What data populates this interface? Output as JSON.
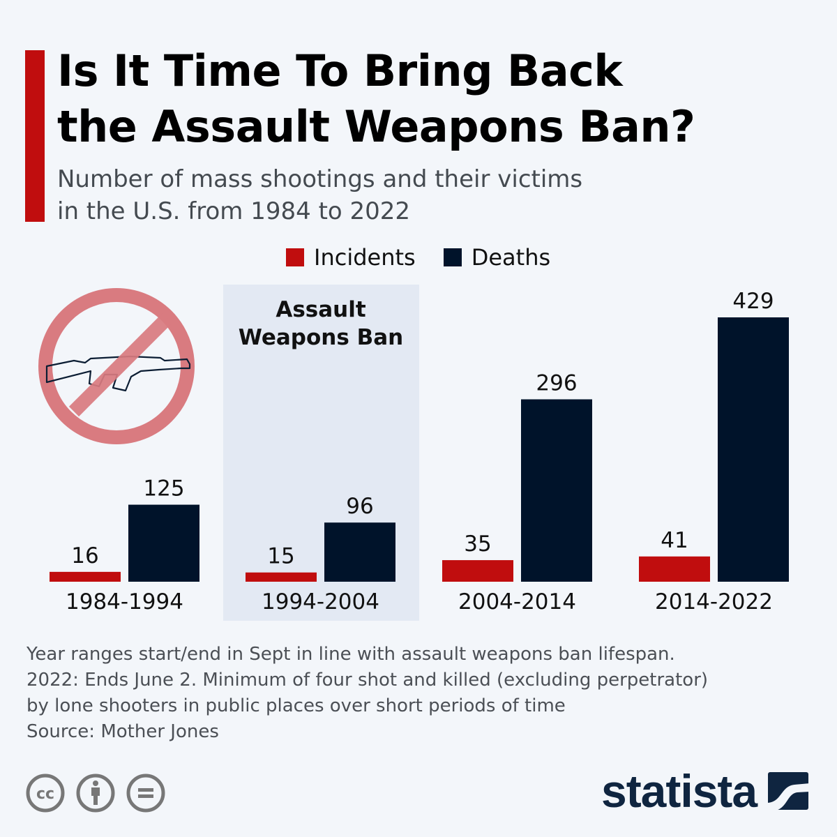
{
  "header": {
    "title_line1": "Is It Time To Bring Back",
    "title_line2": "the Assault Weapons Ban?",
    "subtitle_line1": "Number of mass shootings and their victims",
    "subtitle_line2": "in the U.S. from 1984 to 2022"
  },
  "colors": {
    "accent": "#c00d0e",
    "incidents": "#c00d0e",
    "deaths": "#00132a",
    "ban_highlight": "#e3e9f3",
    "no_sign": "#d97b80"
  },
  "legend": [
    {
      "label": "Incidents",
      "color": "#c00d0e"
    },
    {
      "label": "Deaths",
      "color": "#00132a"
    }
  ],
  "highlight": {
    "label_line1": "Assault",
    "label_line2": "Weapons Ban",
    "category": "1994-2004"
  },
  "icons": {
    "banned_rifle": "no-assault-rifle-icon",
    "license": [
      "cc-icon",
      "attribution-icon",
      "no-derivatives-icon"
    ],
    "brand_mark": "statista-logo-icon"
  },
  "chart_data": {
    "type": "bar",
    "title": "Is It Time To Bring Back the Assault Weapons Ban?",
    "subtitle": "Number of mass shootings and their victims in the U.S. from 1984 to 2022",
    "categories": [
      "1984-1994",
      "1994-2004",
      "2004-2014",
      "2014-2022"
    ],
    "series": [
      {
        "name": "Incidents",
        "values": [
          16,
          15,
          35,
          41
        ],
        "color": "#c00d0e"
      },
      {
        "name": "Deaths",
        "values": [
          125,
          96,
          296,
          429
        ],
        "color": "#00132a"
      }
    ],
    "xlabel": "",
    "ylabel": "",
    "ylim": [
      0,
      429
    ],
    "grid": false,
    "legend_position": "top-center",
    "annotations": [
      "Assault Weapons Ban (1994-2004)"
    ]
  },
  "footer": {
    "notes_line1": "Year ranges start/end in Sept in line with assault weapons ban lifespan.",
    "notes_line2": "2022: Ends June 2. Minimum of four shot and killed (excluding perpetrator)",
    "notes_line3": "by lone shooters in public places over short periods of time",
    "source": "Source: Mother Jones",
    "brand": "statista"
  }
}
